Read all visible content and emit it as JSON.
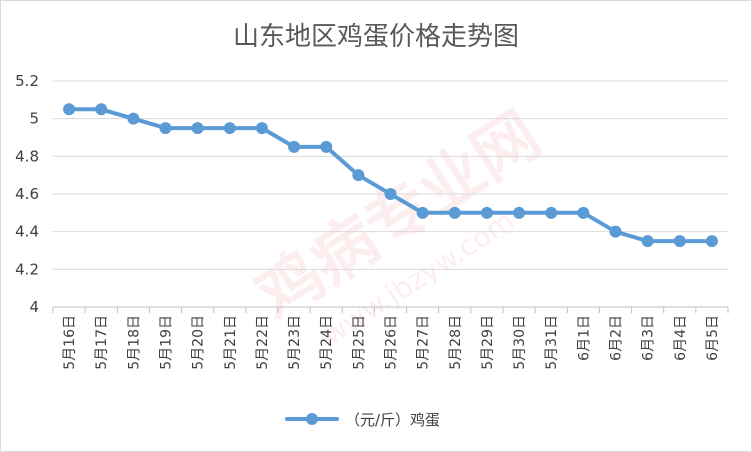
{
  "chart_data": {
    "type": "line",
    "title": "山东地区鸡蛋价格走势图",
    "categories": [
      "5月16日",
      "5月17日",
      "5月18日",
      "5月19日",
      "5月20日",
      "5月21日",
      "5月22日",
      "5月23日",
      "5月24日",
      "5月25日",
      "5月26日",
      "5月27日",
      "5月28日",
      "5月29日",
      "5月30日",
      "5月31日",
      "6月1日",
      "6月2日",
      "6月3日",
      "6月4日",
      "6月5日"
    ],
    "series": [
      {
        "name": "（元/斤）鸡蛋",
        "values": [
          5.05,
          5.05,
          5.0,
          4.95,
          4.95,
          4.95,
          4.95,
          4.85,
          4.85,
          4.7,
          4.6,
          4.5,
          4.5,
          4.5,
          4.5,
          4.5,
          4.5,
          4.4,
          4.35,
          4.35,
          4.35
        ],
        "color": "#5B9BD5"
      }
    ],
    "xlabel": "",
    "ylabel": "",
    "ylim": [
      4,
      5.2
    ],
    "yticks": [
      "4",
      "4.2",
      "4.4",
      "4.6",
      "4.8",
      "5",
      "5.2"
    ],
    "grid": true,
    "legend_position": "bottom"
  },
  "watermark": {
    "text": "鸡病专业网",
    "subtext": "www.jbzyw.com"
  },
  "colors": {
    "gridline": "#d9d9d9",
    "text": "#404040",
    "title": "#595959"
  }
}
